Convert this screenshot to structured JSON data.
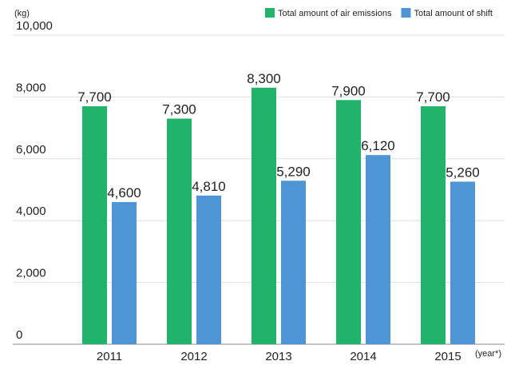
{
  "chart_data": {
    "type": "bar",
    "y_label": "(kg)",
    "x_label": "(year*)",
    "categories": [
      "2011",
      "2012",
      "2013",
      "2014",
      "2015"
    ],
    "series": [
      {
        "name": "Total amount of air emissions",
        "color": "#22b36a",
        "values": [
          7700,
          7300,
          8300,
          7900,
          7700
        ],
        "value_labels": [
          "7,700",
          "7,300",
          "8,300",
          "7,900",
          "7,700"
        ]
      },
      {
        "name": "Total amount of shift",
        "color": "#4f95d6",
        "values": [
          4600,
          4810,
          5290,
          6120,
          5260
        ],
        "value_labels": [
          "4,600",
          "4,810",
          "5,290",
          "6,120",
          "5,260"
        ]
      }
    ],
    "ylim": [
      0,
      10000
    ],
    "yticks": [
      0,
      {
        "value": 2000,
        "label": "2,000"
      },
      {
        "value": 4000,
        "label": "4,000"
      },
      {
        "value": 6000,
        "label": "6,000"
      },
      {
        "value": 8000,
        "label": "8,000"
      },
      {
        "value": 10000,
        "label": "10,000"
      }
    ],
    "grid": true
  }
}
